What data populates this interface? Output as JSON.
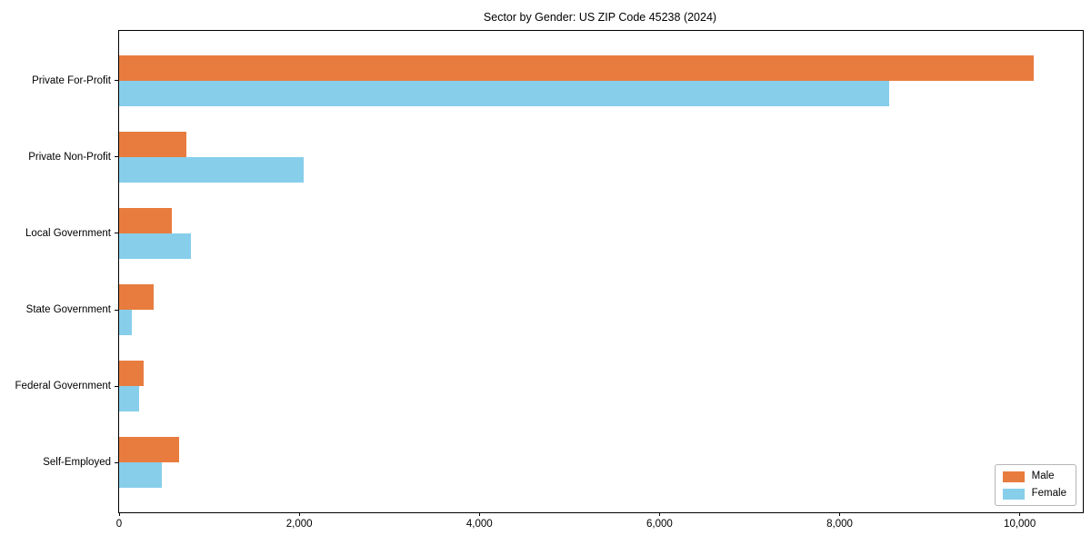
{
  "chart_data": {
    "type": "bar",
    "orientation": "horizontal",
    "title": "Sector by Gender: US ZIP Code 45238 (2024)",
    "categories": [
      "Private For-Profit",
      "Private Non-Profit",
      "Local Government",
      "State Government",
      "Federal Government",
      "Self-Employed"
    ],
    "series": [
      {
        "name": "Male",
        "color": "#E87C3E",
        "values": [
          10150,
          750,
          590,
          380,
          270,
          670
        ]
      },
      {
        "name": "Female",
        "color": "#87CEEB",
        "values": [
          8550,
          2050,
          800,
          140,
          220,
          470
        ]
      }
    ],
    "xlim": [
      0,
      10700
    ],
    "x_ticks": [
      {
        "value": 0,
        "label": "0"
      },
      {
        "value": 2000,
        "label": "2,000"
      },
      {
        "value": 4000,
        "label": "4,000"
      },
      {
        "value": 6000,
        "label": "6,000"
      },
      {
        "value": 8000,
        "label": "8,000"
      },
      {
        "value": 10000,
        "label": "10,000"
      }
    ],
    "xlabel": "",
    "ylabel": "",
    "grid": false,
    "legend": {
      "position": "lower right",
      "entries": [
        "Male",
        "Female"
      ]
    }
  }
}
